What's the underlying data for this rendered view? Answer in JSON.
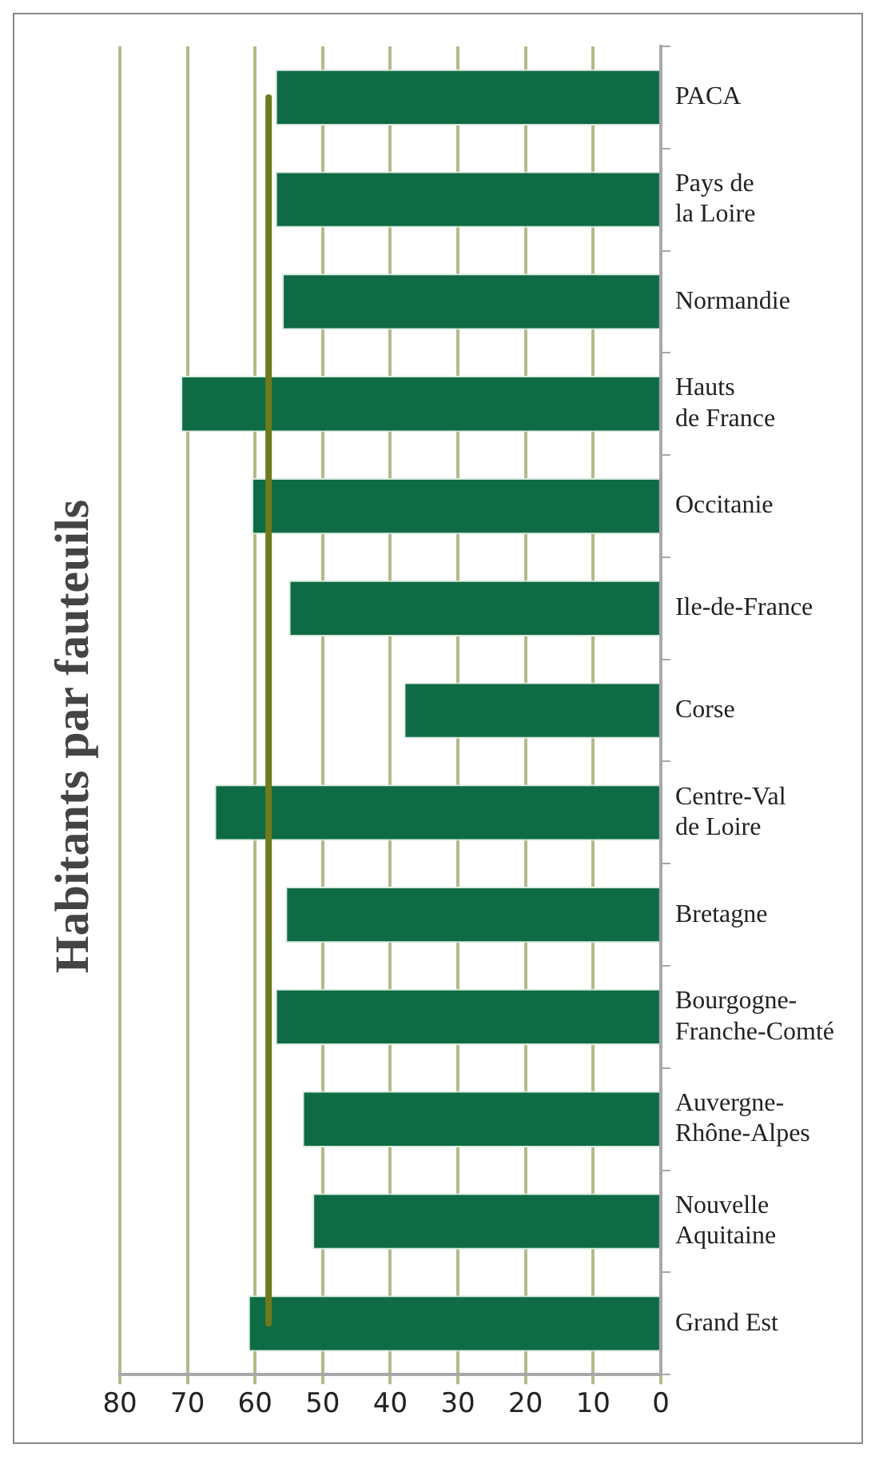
{
  "chart_data": {
    "type": "bar",
    "orientation": "horizontal",
    "title": "Habitants par fauteuils",
    "categories": [
      "PACA",
      "Pays de la Loire",
      "Normandie",
      "Hauts de France",
      "Occitanie",
      "Ile-de-France",
      "Corse",
      "Centre-Val de Loire",
      "Bretagne",
      "Bourgogne- Franche-Comté",
      "Auvergne- Rhône-Alpes",
      "Nouvelle Aquitaine",
      "Grand Est"
    ],
    "series": [
      {
        "color": "#0e6b45",
        "values": [
          57,
          57,
          56,
          71,
          60.5,
          55,
          38,
          66,
          55.5,
          57,
          53,
          51.5,
          61
        ]
      },
      {
        "type": "line",
        "color": "#6f7a1e",
        "values": [
          58,
          58,
          58,
          58,
          58,
          58,
          58,
          58,
          58,
          58,
          58,
          58,
          58
        ]
      }
    ],
    "xlim": [
      80,
      0
    ],
    "xticks": [
      0,
      10,
      20,
      30,
      40,
      50,
      60,
      70,
      80
    ],
    "grid": "x",
    "legend": false,
    "marker": "none",
    "line_style": "solid"
  }
}
